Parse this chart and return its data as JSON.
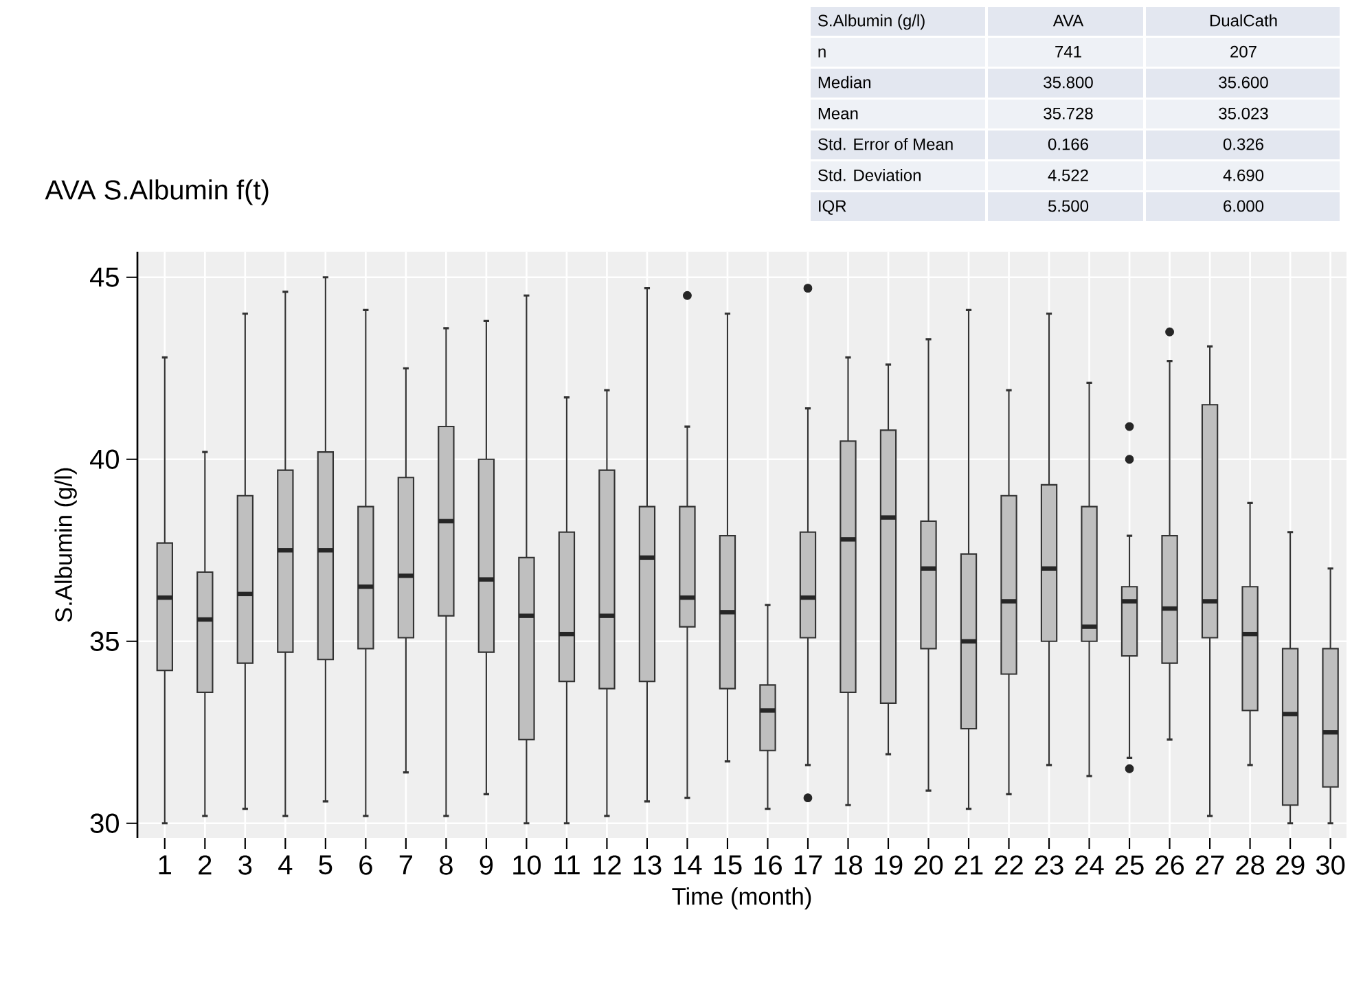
{
  "chart_data": {
    "type": "box",
    "title": "AVA  S.Albumin f(t)",
    "xlabel": "Time (month)",
    "ylabel": "S.Albumin (g/l)",
    "categories": [
      "1",
      "2",
      "3",
      "4",
      "5",
      "6",
      "7",
      "8",
      "9",
      "10",
      "11",
      "12",
      "13",
      "14",
      "15",
      "16",
      "17",
      "18",
      "19",
      "20",
      "21",
      "22",
      "23",
      "24",
      "25",
      "26",
      "27",
      "28",
      "29",
      "30"
    ],
    "ylim": [
      29.6,
      45.7
    ],
    "yticks": [
      30,
      35,
      40,
      45
    ],
    "grid": true,
    "color": "#bfbfbf",
    "boxes": [
      {
        "low": 30.0,
        "q1": 34.2,
        "median": 36.2,
        "q3": 37.7,
        "high": 42.8
      },
      {
        "low": 30.2,
        "q1": 33.6,
        "median": 35.6,
        "q3": 36.9,
        "high": 40.2
      },
      {
        "low": 30.4,
        "q1": 34.4,
        "median": 36.3,
        "q3": 39.0,
        "high": 44.0
      },
      {
        "low": 30.2,
        "q1": 34.7,
        "median": 37.5,
        "q3": 39.7,
        "high": 44.6
      },
      {
        "low": 30.6,
        "q1": 34.5,
        "median": 37.5,
        "q3": 40.2,
        "high": 45.0
      },
      {
        "low": 30.2,
        "q1": 34.8,
        "median": 36.5,
        "q3": 38.7,
        "high": 44.1
      },
      {
        "low": 31.4,
        "q1": 35.1,
        "median": 36.8,
        "q3": 39.5,
        "high": 42.5
      },
      {
        "low": 30.2,
        "q1": 35.7,
        "median": 38.3,
        "q3": 40.9,
        "high": 43.6
      },
      {
        "low": 30.8,
        "q1": 34.7,
        "median": 36.7,
        "q3": 40.0,
        "high": 43.8
      },
      {
        "low": 30.0,
        "q1": 32.3,
        "median": 35.7,
        "q3": 37.3,
        "high": 44.5
      },
      {
        "low": 30.0,
        "q1": 33.9,
        "median": 35.2,
        "q3": 38.0,
        "high": 41.7
      },
      {
        "low": 30.2,
        "q1": 33.7,
        "median": 35.7,
        "q3": 39.7,
        "high": 41.9
      },
      {
        "low": 30.6,
        "q1": 33.9,
        "median": 37.3,
        "q3": 38.7,
        "high": 44.7
      },
      {
        "low": 30.7,
        "q1": 35.4,
        "median": 36.2,
        "q3": 38.7,
        "high": 40.9,
        "outliers": [
          44.5
        ]
      },
      {
        "low": 31.7,
        "q1": 33.7,
        "median": 35.8,
        "q3": 37.9,
        "high": 44.0
      },
      {
        "low": 30.4,
        "q1": 32.0,
        "median": 33.1,
        "q3": 33.8,
        "high": 36.0
      },
      {
        "low": 31.6,
        "q1": 35.1,
        "median": 36.2,
        "q3": 38.0,
        "high": 41.4,
        "outliers": [
          44.7,
          30.7
        ]
      },
      {
        "low": 30.5,
        "q1": 33.6,
        "median": 37.8,
        "q3": 40.5,
        "high": 42.8
      },
      {
        "low": 31.9,
        "q1": 33.3,
        "median": 38.4,
        "q3": 40.8,
        "high": 42.6
      },
      {
        "low": 30.9,
        "q1": 34.8,
        "median": 37.0,
        "q3": 38.3,
        "high": 43.3
      },
      {
        "low": 30.4,
        "q1": 32.6,
        "median": 35.0,
        "q3": 37.4,
        "high": 44.1
      },
      {
        "low": 30.8,
        "q1": 34.1,
        "median": 36.1,
        "q3": 39.0,
        "high": 41.9
      },
      {
        "low": 31.6,
        "q1": 35.0,
        "median": 37.0,
        "q3": 39.3,
        "high": 44.0
      },
      {
        "low": 31.3,
        "q1": 35.0,
        "median": 35.4,
        "q3": 38.7,
        "high": 42.1
      },
      {
        "low": 31.8,
        "q1": 34.6,
        "median": 36.1,
        "q3": 36.5,
        "high": 37.9,
        "outliers": [
          40.9,
          40.0,
          31.5
        ]
      },
      {
        "low": 32.3,
        "q1": 34.4,
        "median": 35.9,
        "q3": 37.9,
        "high": 42.7,
        "outliers": [
          43.5
        ]
      },
      {
        "low": 30.2,
        "q1": 35.1,
        "median": 36.1,
        "q3": 41.5,
        "high": 43.1
      },
      {
        "low": 31.6,
        "q1": 33.1,
        "median": 35.2,
        "q3": 36.5,
        "high": 38.8
      },
      {
        "low": 30.0,
        "q1": 30.5,
        "median": 33.0,
        "q3": 34.8,
        "high": 38.0
      },
      {
        "low": 30.0,
        "q1": 31.0,
        "median": 32.5,
        "q3": 34.8,
        "high": 37.0
      }
    ],
    "annotations": [
      "S.Albumin (g/l)",
      "AVA",
      "DualCath",
      "n",
      "741",
      "207",
      "Median",
      "35.800",
      "35.600",
      "Mean",
      "35.728",
      "35.023",
      "Std. Error of Mean",
      "0.166",
      "0.326",
      "Std. Deviation",
      "4.522",
      "4.690",
      "IQR",
      "5.500",
      "6.000"
    ]
  }
}
